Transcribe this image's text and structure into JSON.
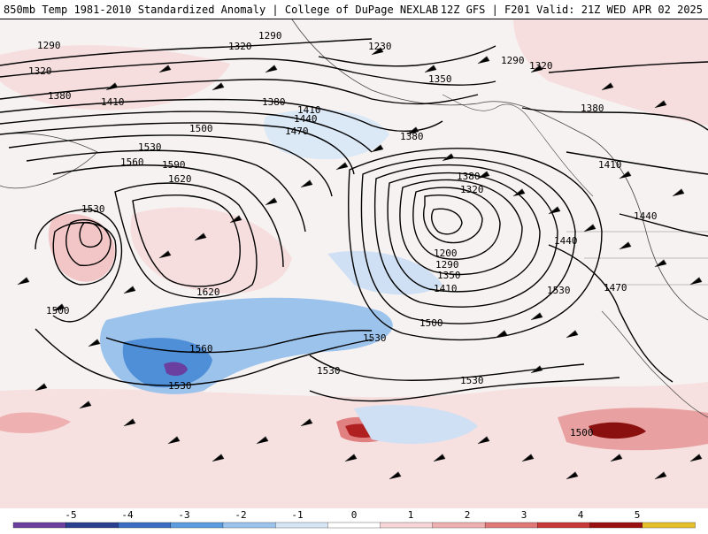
{
  "header": {
    "title": "850mb Temp 1981-2010 Standardized Anomaly | College of DuPage NEXLAB",
    "run_info": "12Z GFS | F201 Valid: 21Z WED APR 02 2025"
  },
  "map": {
    "contour_labels": [
      "1290",
      "1320",
      "1290",
      "1230",
      "1290",
      "1320",
      "1350",
      "1320",
      "1380",
      "1410",
      "1380",
      "1410",
      "1440",
      "1470",
      "1500",
      "1530",
      "1560",
      "1590",
      "1620",
      "1620",
      "1530",
      "1500",
      "1560",
      "1530",
      "1380",
      "1320",
      "1200",
      "1290",
      "1350",
      "1410",
      "1500",
      "1530",
      "1530",
      "1530",
      "1500",
      "1380",
      "1380",
      "1410",
      "1440",
      "1440",
      "1470",
      "1530"
    ]
  },
  "colorbar": {
    "ticks": [
      "-5",
      "-4",
      "-3",
      "-2",
      "-1",
      "0",
      "1",
      "2",
      "3",
      "4",
      "5"
    ],
    "colors": [
      "#6a3fa0",
      "#2a3f8f",
      "#3a6cc4",
      "#5b9be0",
      "#9cc3ec",
      "#d6e6f6",
      "#ffffff",
      "#f6d6d6",
      "#eeb0b0",
      "#e07878",
      "#c83838",
      "#9a1010",
      "#e6c02a"
    ]
  }
}
